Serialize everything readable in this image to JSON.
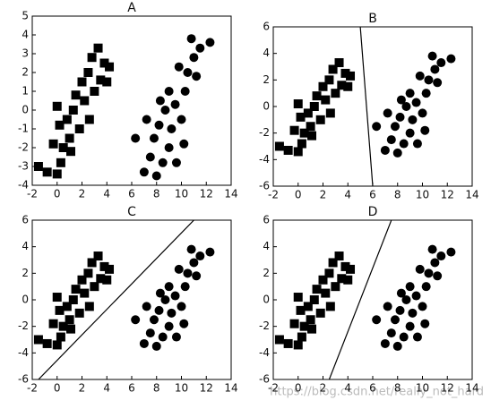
{
  "chart_data": [
    {
      "type": "scatter",
      "title": "A",
      "xlim": [
        -2,
        14
      ],
      "ylim": [
        -4,
        5
      ],
      "xticks": [
        -2,
        0,
        2,
        4,
        6,
        8,
        10,
        12,
        14
      ],
      "yticks": [
        -4,
        -3,
        -2,
        -1,
        0,
        1,
        2,
        3,
        4,
        5
      ],
      "series": [
        {
          "marker": "square",
          "color": "#000000",
          "x": [
            -1.5,
            -0.8,
            0,
            0.3,
            -0.3,
            0.5,
            1,
            0.2,
            0.8,
            1.3,
            1.8,
            0,
            1.5,
            2.2,
            2,
            2.5,
            3,
            2.8,
            3.3,
            3.8,
            4.2,
            3.5,
            2.6,
            1.1,
            4
          ],
          "y": [
            -3,
            -3.3,
            -3.4,
            -2.8,
            -1.8,
            -2,
            -1.5,
            -0.8,
            -0.5,
            0,
            -1,
            0.2,
            0.8,
            0.5,
            1.5,
            2,
            1,
            2.8,
            3.3,
            2.5,
            2.3,
            1.6,
            -0.5,
            -2.2,
            1.5
          ]
        },
        {
          "marker": "circle",
          "color": "#000000",
          "x": [
            6.3,
            7,
            7.5,
            8,
            8.5,
            7.8,
            8.2,
            9,
            9.2,
            8.7,
            9.5,
            10,
            9,
            10.3,
            10.5,
            9.8,
            11,
            10.8,
            11.5,
            12.3,
            11.2,
            8.3,
            7.2,
            9.6,
            10.2
          ],
          "y": [
            -1.5,
            -3.3,
            -2.5,
            -3.5,
            -2.8,
            -1.5,
            -0.8,
            -2,
            -1,
            0,
            0.3,
            -0.5,
            1,
            1,
            2,
            2.3,
            2.8,
            3.8,
            3.3,
            3.6,
            1.8,
            0.5,
            -0.5,
            -2.8,
            -1.8
          ]
        }
      ]
    },
    {
      "type": "scatter",
      "title": "B",
      "xlim": [
        -2,
        14
      ],
      "ylim": [
        -6,
        6
      ],
      "xticks": [
        -2,
        0,
        2,
        4,
        6,
        8,
        10,
        12,
        14
      ],
      "yticks": [
        -6,
        -4,
        -2,
        0,
        2,
        4,
        6
      ],
      "series": [
        {
          "marker": "square",
          "color": "#000000",
          "x": [
            -1.5,
            -0.8,
            0,
            0.3,
            -0.3,
            0.5,
            1,
            0.2,
            0.8,
            1.3,
            1.8,
            0,
            1.5,
            2.2,
            2,
            2.5,
            3,
            2.8,
            3.3,
            3.8,
            4.2,
            3.5,
            2.6,
            1.1,
            4
          ],
          "y": [
            -3,
            -3.3,
            -3.4,
            -2.8,
            -1.8,
            -2,
            -1.5,
            -0.8,
            -0.5,
            0,
            -1,
            0.2,
            0.8,
            0.5,
            1.5,
            2,
            1,
            2.8,
            3.3,
            2.5,
            2.3,
            1.6,
            -0.5,
            -2.2,
            1.5
          ]
        },
        {
          "marker": "circle",
          "color": "#000000",
          "x": [
            6.3,
            7,
            7.5,
            8,
            8.5,
            7.8,
            8.2,
            9,
            9.2,
            8.7,
            9.5,
            10,
            9,
            10.3,
            10.5,
            9.8,
            11,
            10.8,
            11.5,
            12.3,
            11.2,
            8.3,
            7.2,
            9.6,
            10.2
          ],
          "y": [
            -1.5,
            -3.3,
            -2.5,
            -3.5,
            -2.8,
            -1.5,
            -0.8,
            -2,
            -1,
            0,
            0.3,
            -0.5,
            1,
            1,
            2,
            2.3,
            2.8,
            3.8,
            3.3,
            3.6,
            1.8,
            0.5,
            -0.5,
            -2.8,
            -1.8
          ]
        },
        {
          "marker": "line",
          "color": "#000000",
          "x": [
            5,
            6
          ],
          "y": [
            6,
            -6
          ]
        }
      ]
    },
    {
      "type": "scatter",
      "title": "C",
      "xlim": [
        -2,
        14
      ],
      "ylim": [
        -6,
        6
      ],
      "xticks": [
        -2,
        0,
        2,
        4,
        6,
        8,
        10,
        12,
        14
      ],
      "yticks": [
        -6,
        -4,
        -2,
        0,
        2,
        4,
        6
      ],
      "series": [
        {
          "marker": "square",
          "color": "#000000",
          "x": [
            -1.5,
            -0.8,
            0,
            0.3,
            -0.3,
            0.5,
            1,
            0.2,
            0.8,
            1.3,
            1.8,
            0,
            1.5,
            2.2,
            2,
            2.5,
            3,
            2.8,
            3.3,
            3.8,
            4.2,
            3.5,
            2.6,
            1.1,
            4
          ],
          "y": [
            -3,
            -3.3,
            -3.4,
            -2.8,
            -1.8,
            -2,
            -1.5,
            -0.8,
            -0.5,
            0,
            -1,
            0.2,
            0.8,
            0.5,
            1.5,
            2,
            1,
            2.8,
            3.3,
            2.5,
            2.3,
            1.6,
            -0.5,
            -2.2,
            1.5
          ]
        },
        {
          "marker": "circle",
          "color": "#000000",
          "x": [
            6.3,
            7,
            7.5,
            8,
            8.5,
            7.8,
            8.2,
            9,
            9.2,
            8.7,
            9.5,
            10,
            9,
            10.3,
            10.5,
            9.8,
            11,
            10.8,
            11.5,
            12.3,
            11.2,
            8.3,
            7.2,
            9.6,
            10.2
          ],
          "y": [
            -1.5,
            -3.3,
            -2.5,
            -3.5,
            -2.8,
            -1.5,
            -0.8,
            -2,
            -1,
            0,
            0.3,
            -0.5,
            1,
            1,
            2,
            2.3,
            2.8,
            3.8,
            3.3,
            3.6,
            1.8,
            0.5,
            -0.5,
            -2.8,
            -1.8
          ]
        },
        {
          "marker": "line",
          "color": "#000000",
          "x": [
            -1.5,
            11
          ],
          "y": [
            -6,
            6
          ]
        }
      ]
    },
    {
      "type": "scatter",
      "title": "D",
      "xlim": [
        -2,
        14
      ],
      "ylim": [
        -6,
        6
      ],
      "xticks": [
        -2,
        0,
        2,
        4,
        6,
        8,
        10,
        12,
        14
      ],
      "yticks": [
        -6,
        -4,
        -2,
        0,
        2,
        4,
        6
      ],
      "series": [
        {
          "marker": "square",
          "color": "#000000",
          "x": [
            -1.5,
            -0.8,
            0,
            0.3,
            -0.3,
            0.5,
            1,
            0.2,
            0.8,
            1.3,
            1.8,
            0,
            1.5,
            2.2,
            2,
            2.5,
            3,
            2.8,
            3.3,
            3.8,
            4.2,
            3.5,
            2.6,
            1.1,
            4
          ],
          "y": [
            -3,
            -3.3,
            -3.4,
            -2.8,
            -1.8,
            -2,
            -1.5,
            -0.8,
            -0.5,
            0,
            -1,
            0.2,
            0.8,
            0.5,
            1.5,
            2,
            1,
            2.8,
            3.3,
            2.5,
            2.3,
            1.6,
            -0.5,
            -2.2,
            1.5
          ]
        },
        {
          "marker": "circle",
          "color": "#000000",
          "x": [
            6.3,
            7,
            7.5,
            8,
            8.5,
            7.8,
            8.2,
            9,
            9.2,
            8.7,
            9.5,
            10,
            9,
            10.3,
            10.5,
            9.8,
            11,
            10.8,
            11.5,
            12.3,
            11.2,
            8.3,
            7.2,
            9.6,
            10.2
          ],
          "y": [
            -1.5,
            -3.3,
            -2.5,
            -3.5,
            -2.8,
            -1.5,
            -0.8,
            -2,
            -1,
            0,
            0.3,
            -0.5,
            1,
            1,
            2,
            2.3,
            2.8,
            3.8,
            3.3,
            3.6,
            1.8,
            0.5,
            -0.5,
            -2.8,
            -1.8
          ]
        },
        {
          "marker": "line",
          "color": "#000000",
          "x": [
            2.5,
            7.5
          ],
          "y": [
            -6,
            6
          ]
        }
      ]
    }
  ],
  "watermark": "https://blog.csdn.net/really_not_hard"
}
